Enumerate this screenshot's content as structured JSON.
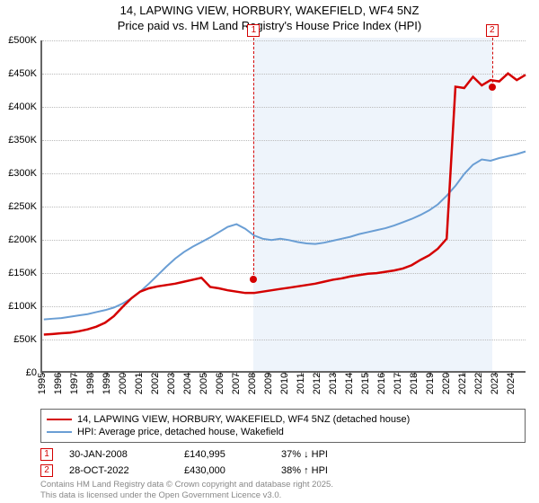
{
  "title_line1": "14, LAPWING VIEW, HORBURY, WAKEFIELD, WF4 5NZ",
  "title_line2": "Price paid vs. HM Land Registry's House Price Index (HPI)",
  "chart": {
    "type": "line",
    "background_color": "#ffffff",
    "band_color": "#eef4fb",
    "grid_color": "#bbbbbb",
    "axis_color": "#656565",
    "x_years": [
      1995,
      1996,
      1997,
      1998,
      1999,
      2000,
      2001,
      2002,
      2003,
      2004,
      2005,
      2006,
      2007,
      2008,
      2009,
      2010,
      2011,
      2012,
      2013,
      2014,
      2015,
      2016,
      2017,
      2018,
      2019,
      2020,
      2021,
      2022,
      2023,
      2024
    ],
    "x_range": [
      1995,
      2025
    ],
    "ylim": [
      0,
      500000
    ],
    "yticks": [
      0,
      50000,
      100000,
      150000,
      200000,
      250000,
      300000,
      350000,
      400000,
      450000,
      500000
    ],
    "ytick_labels": [
      "£0",
      "£50K",
      "£100K",
      "£150K",
      "£200K",
      "£250K",
      "£300K",
      "£350K",
      "£400K",
      "£450K",
      "£500K"
    ],
    "series": [
      {
        "name": "14, LAPWING VIEW, HORBURY, WAKEFIELD, WF4 5NZ (detached house)",
        "color": "#d40000",
        "line_width": 2.5,
        "x_start": 1995.1,
        "points": [
          55000,
          56000,
          57000,
          58000,
          60000,
          63000,
          67000,
          73000,
          83000,
          97000,
          110000,
          120000,
          125000,
          128000,
          130000,
          132000,
          135000,
          138000,
          140995,
          127000,
          125000,
          122000,
          120000,
          118000,
          118000,
          120000,
          122000,
          124000,
          126000,
          128000,
          130000,
          132000,
          135000,
          138000,
          140000,
          143000,
          145000,
          147000,
          148000,
          150000,
          152000,
          155000,
          160000,
          168000,
          175000,
          185000,
          200000,
          430000,
          428000,
          445000,
          432000,
          440000,
          438000,
          450000,
          440000,
          448000
        ]
      },
      {
        "name": "HPI: Average price, detached house, Wakefield",
        "color": "#6a9ed4",
        "line_width": 2,
        "x_start": 1995.1,
        "points": [
          78000,
          79000,
          80000,
          82000,
          84000,
          86000,
          89000,
          92000,
          96000,
          102000,
          110000,
          120000,
          132000,
          145000,
          158000,
          170000,
          180000,
          188000,
          195000,
          202000,
          210000,
          218000,
          222000,
          215000,
          205000,
          200000,
          198000,
          200000,
          198000,
          195000,
          193000,
          192000,
          194000,
          197000,
          200000,
          203000,
          207000,
          210000,
          213000,
          216000,
          220000,
          225000,
          230000,
          236000,
          243000,
          252000,
          265000,
          280000,
          298000,
          312000,
          320000,
          318000,
          322000,
          325000,
          328000,
          332000
        ]
      }
    ],
    "markers": [
      {
        "id": "1",
        "year": 2008.08,
        "price": 140995,
        "color": "#d40000"
      },
      {
        "id": "2",
        "year": 2022.82,
        "price": 430000,
        "color": "#d40000"
      }
    ]
  },
  "legend": {
    "items": [
      {
        "color": "#d40000",
        "label": "14, LAPWING VIEW, HORBURY, WAKEFIELD, WF4 5NZ (detached house)"
      },
      {
        "color": "#6a9ed4",
        "label": "HPI: Average price, detached house, Wakefield"
      }
    ]
  },
  "sales": [
    {
      "id": "1",
      "color": "#d40000",
      "date": "30-JAN-2008",
      "price": "£140,995",
      "delta": "37% ↓ HPI"
    },
    {
      "id": "2",
      "color": "#d40000",
      "date": "28-OCT-2022",
      "price": "£430,000",
      "delta": "38% ↑ HPI"
    }
  ],
  "footer_line1": "Contains HM Land Registry data © Crown copyright and database right 2025.",
  "footer_line2": "This data is licensed under the Open Government Licence v3.0."
}
